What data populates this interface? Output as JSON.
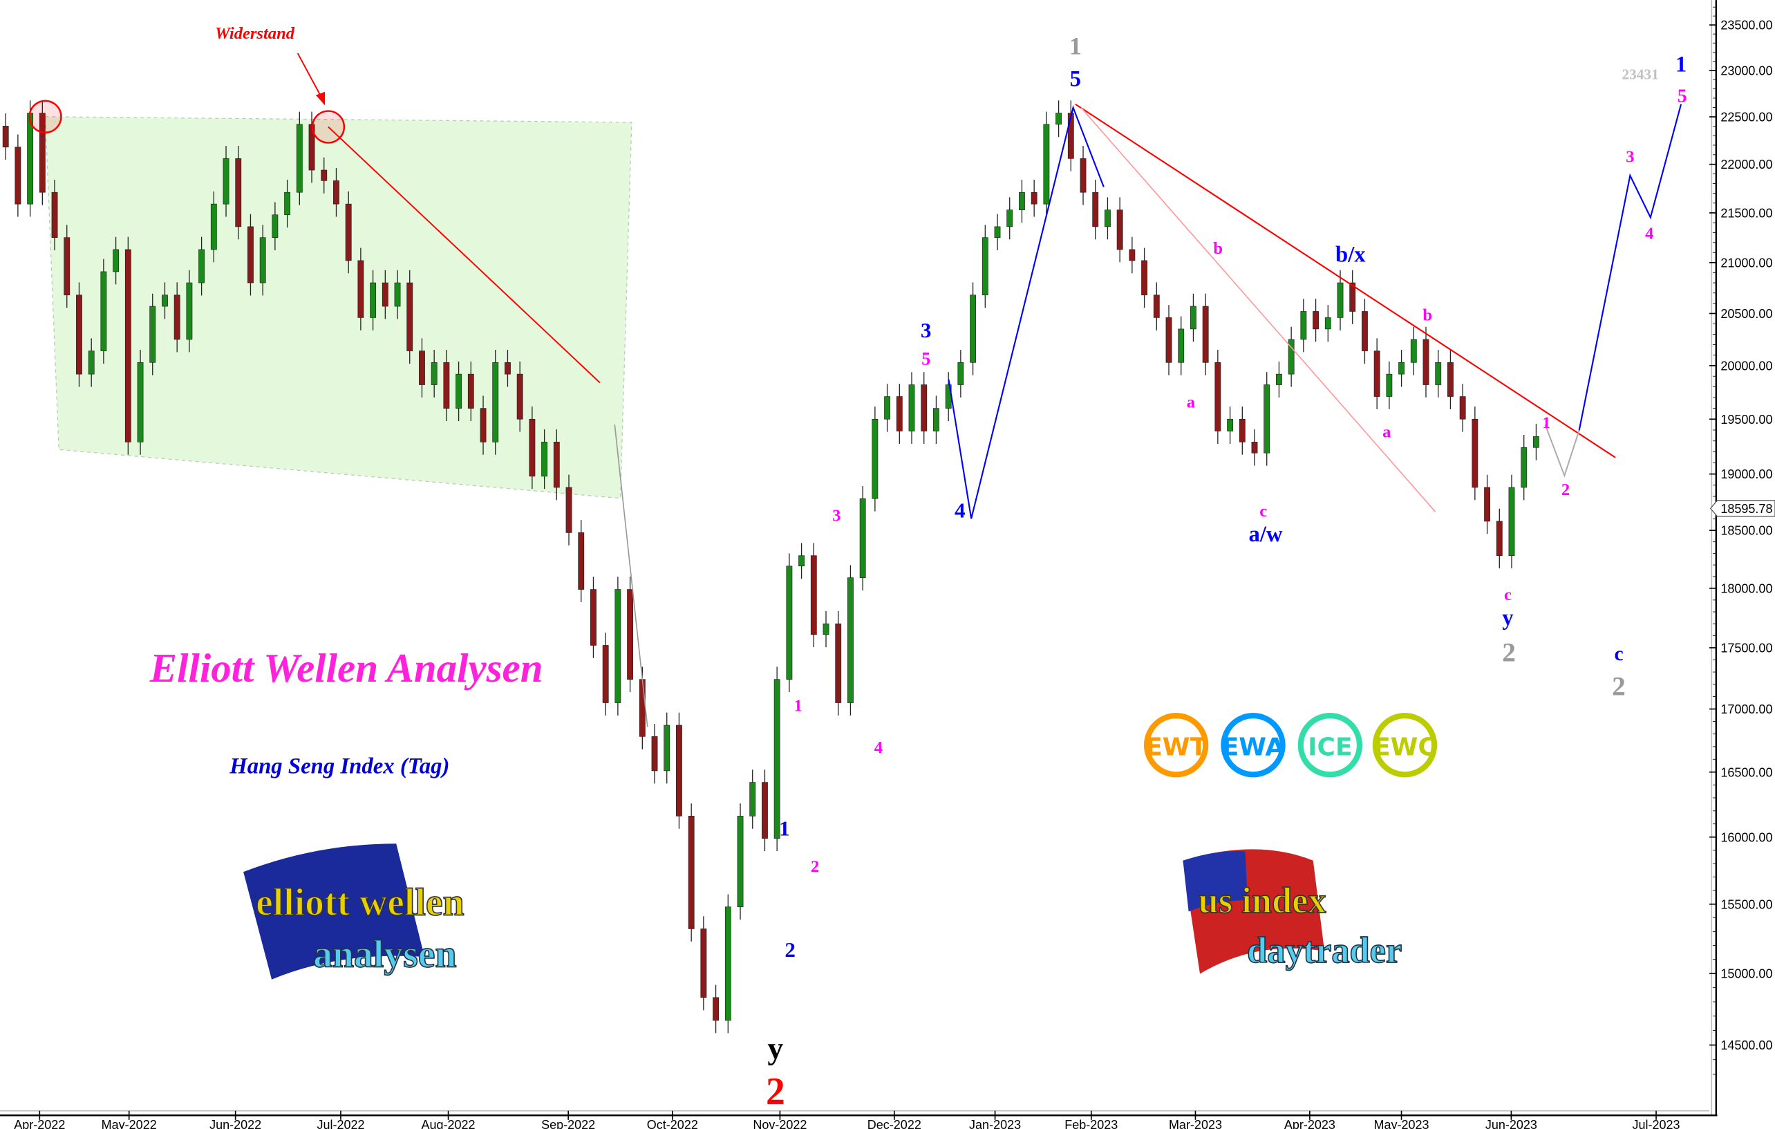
{
  "chart_data": {
    "type": "candlestick",
    "title": "Elliott Wellen Analysen",
    "subtitle": "Hang Seng Index (Tag)",
    "y_scale": "log",
    "ylim": [
      14200,
      23800
    ],
    "y_ticks": [
      "23500.00",
      "23000.00",
      "22500.00",
      "22000.00",
      "21500.00",
      "21000.00",
      "20500.00",
      "20000.00",
      "19500.00",
      "19000.00",
      "18500.00",
      "18000.00",
      "17500.00",
      "17000.00",
      "16500.00",
      "16000.00",
      "15500.00",
      "15000.00",
      "14500.00"
    ],
    "x_ticks": [
      "Apr-2022",
      "May-2022",
      "Jun-2022",
      "Jul-2022",
      "Aug-2022",
      "Sep-2022",
      "Oct-2022",
      "Nov-2022",
      "Dec-2022",
      "Jan-2023",
      "Feb-2023",
      "Mar-2023",
      "Apr-2023",
      "May-2023",
      "Jun-2023",
      "Jul-2023"
    ],
    "period": [
      "2022-03-22",
      "2023-06-07"
    ],
    "closes": [
      22180,
      21590,
      22540,
      21710,
      21250,
      20680,
      19920,
      20140,
      20910,
      21130,
      19290,
      20030,
      20570,
      20680,
      20250,
      20800,
      21130,
      21590,
      22060,
      21360,
      20800,
      21250,
      21480,
      21710,
      22420,
      21940,
      21830,
      21590,
      21020,
      20460,
      20800,
      20570,
      20800,
      20140,
      19820,
      20030,
      19600,
      19920,
      19600,
      19290,
      20030,
      19920,
      19500,
      18980,
      19290,
      18880,
      18480,
      17990,
      17520,
      17050,
      17990,
      17240,
      16780,
      16510,
      16870,
      16160,
      15320,
      14830,
      14670,
      15480,
      16160,
      16420,
      15990,
      17240,
      18190,
      18280,
      17610,
      17700,
      17050,
      18090,
      18780,
      19500,
      19710,
      19390,
      19820,
      19390,
      19600,
      19820,
      20030,
      20680,
      21250,
      21360,
      21530,
      21710,
      21590,
      22420,
      22540,
      22060,
      21710,
      21360,
      21530,
      21130,
      21020,
      20680,
      20460,
      20030,
      20350,
      20570,
      20030,
      19390,
      19500,
      19290,
      19190,
      19820,
      19920,
      20250,
      20520,
      20350,
      20460,
      20800,
      20520,
      20140,
      19710,
      19920,
      20030,
      20250,
      19820,
      20030,
      19710,
      19500,
      18880,
      18580,
      18280,
      18880,
      19240,
      19340
    ],
    "last_price": "18595.78",
    "colors": {
      "up": "#1a8a1a",
      "down": "#8b1a1a",
      "resistance": "#ff0000",
      "wave_blue": "#0000ff",
      "wave_magenta": "#ff00ff",
      "channel_fill": "#e4f8dc"
    },
    "annotations": [
      {
        "text": "Widerstand",
        "color": "#ff0000"
      },
      {
        "text": "1",
        "color": "#999999"
      },
      {
        "text": "5",
        "color": "#0000ff"
      },
      {
        "text": "3",
        "color": "#0000ff"
      },
      {
        "text": "5",
        "color": "#ff00ff"
      },
      {
        "text": "4",
        "color": "#0000ff"
      },
      {
        "text": "3",
        "color": "#ff00ff"
      },
      {
        "text": "1",
        "color": "#ff00ff"
      },
      {
        "text": "4",
        "color": "#ff00ff"
      },
      {
        "text": "1",
        "color": "#0000ff"
      },
      {
        "text": "2",
        "color": "#ff00ff"
      },
      {
        "text": "2",
        "color": "#0000ff"
      },
      {
        "text": "y",
        "color": "#000000"
      },
      {
        "text": "2",
        "color": "#ff0000"
      },
      {
        "text": "b",
        "color": "#ff00ff"
      },
      {
        "text": "a",
        "color": "#ff00ff"
      },
      {
        "text": "c",
        "color": "#ff00ff"
      },
      {
        "text": "a/w",
        "color": "#0000ff"
      },
      {
        "text": "b/x",
        "color": "#0000ff"
      },
      {
        "text": "b",
        "color": "#ff00ff"
      },
      {
        "text": "a",
        "color": "#ff00ff"
      },
      {
        "text": "1",
        "color": "#ff00ff"
      },
      {
        "text": "2",
        "color": "#ff00ff"
      },
      {
        "text": "c",
        "color": "#ff00ff"
      },
      {
        "text": "y",
        "color": "#0000ff"
      },
      {
        "text": "2",
        "color": "#999999"
      },
      {
        "text": "c",
        "color": "#0000ff"
      },
      {
        "text": "2",
        "color": "#999999"
      },
      {
        "text": "23431",
        "color": "#c0c0c0"
      },
      {
        "text": "1",
        "color": "#0000ff"
      },
      {
        "text": "5",
        "color": "#ff00ff"
      },
      {
        "text": "3",
        "color": "#ff00ff"
      },
      {
        "text": "4",
        "color": "#ff00ff"
      }
    ]
  },
  "badges": [
    {
      "text": "EWT",
      "color": "#ff9900"
    },
    {
      "text": "EWA",
      "color": "#0099ff"
    },
    {
      "text": "ICE",
      "color": "#33ddaa"
    },
    {
      "text": "EWC",
      "color": "#bbcc00"
    }
  ],
  "logos": {
    "left": {
      "line1": "elliott wellen",
      "line2": "analysen"
    },
    "right": {
      "line1": "us index",
      "line2": "daytrader"
    }
  }
}
